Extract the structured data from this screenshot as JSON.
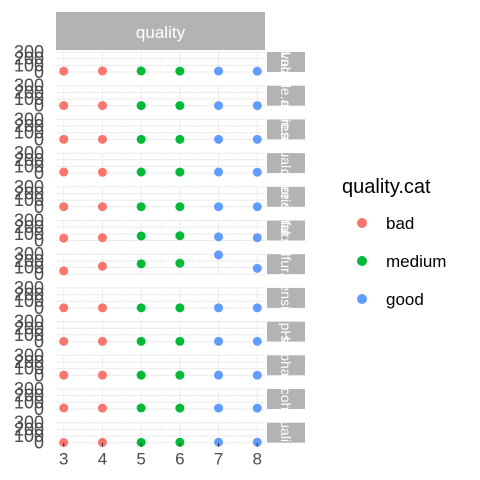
{
  "chart_data": {
    "type": "scatter",
    "facet_col_label": "quality",
    "facet_row_labels": [
      "fixed.acidity",
      "volatile.acidity",
      "citric.acid",
      "residual.sugar",
      "chlorides",
      "free.sulfur.dioxide",
      "total.sulfur.dioxide",
      "density",
      "pH",
      "sulphates",
      "alcohol",
      "quality"
    ],
    "x_ticks": [
      3,
      4,
      5,
      6,
      7,
      8
    ],
    "y_ticks": [
      0,
      100,
      200,
      300
    ],
    "ylim": [
      0,
      300
    ],
    "xlim": [
      2.8,
      8.2
    ],
    "legend": {
      "title": "quality.cat",
      "position": "right",
      "entries": [
        {
          "label": "bad",
          "color": "#F8766D"
        },
        {
          "label": "medium",
          "color": "#00BA38"
        },
        {
          "label": "good",
          "color": "#619CFF"
        }
      ]
    },
    "categories_by_x": {
      "3": "bad",
      "4": "bad",
      "5": "medium",
      "6": "medium",
      "7": "good",
      "8": "good"
    },
    "panels": [
      {
        "name": "fixed.acidity",
        "points": [
          [
            3,
            12
          ],
          [
            4,
            16
          ],
          [
            5,
            16
          ],
          [
            6,
            14
          ],
          [
            7,
            14
          ],
          [
            8,
            13
          ]
        ]
      },
      {
        "name": "volatile.acidity",
        "points": [
          [
            3,
            2
          ],
          [
            4,
            2
          ],
          [
            5,
            2
          ],
          [
            6,
            2
          ],
          [
            7,
            2
          ],
          [
            8,
            2
          ]
        ]
      },
      {
        "name": "citric.acid",
        "points": [
          [
            3,
            1
          ],
          [
            4,
            1
          ],
          [
            5,
            1
          ],
          [
            6,
            1
          ],
          [
            7,
            1
          ],
          [
            8,
            1
          ]
        ]
      },
      {
        "name": "residual.sugar",
        "points": [
          [
            3,
            16
          ],
          [
            4,
            12
          ],
          [
            5,
            16
          ],
          [
            6,
            15
          ],
          [
            7,
            16
          ],
          [
            8,
            13
          ]
        ]
      },
      {
        "name": "chlorides",
        "points": [
          [
            3,
            1
          ],
          [
            4,
            1
          ],
          [
            5,
            1
          ],
          [
            6,
            1
          ],
          [
            7,
            1
          ],
          [
            8,
            1
          ]
        ]
      },
      {
        "name": "free.sulfur.dioxide",
        "points": [
          [
            3,
            34
          ],
          [
            4,
            41
          ],
          [
            5,
            68
          ],
          [
            6,
            72
          ],
          [
            7,
            55
          ],
          [
            8,
            42
          ]
        ]
      },
      {
        "name": "total.sulfur.dioxide",
        "points": [
          [
            3,
            49
          ],
          [
            4,
            119
          ],
          [
            5,
            155
          ],
          [
            6,
            165
          ],
          [
            7,
            289
          ],
          [
            8,
            88
          ]
        ]
      },
      {
        "name": "density",
        "points": [
          [
            3,
            1
          ],
          [
            4,
            1
          ],
          [
            5,
            1
          ],
          [
            6,
            1
          ],
          [
            7,
            1
          ],
          [
            8,
            1
          ]
        ]
      },
      {
        "name": "pH",
        "points": [
          [
            3,
            4
          ],
          [
            4,
            4
          ],
          [
            5,
            4
          ],
          [
            6,
            4
          ],
          [
            7,
            4
          ],
          [
            8,
            4
          ]
        ]
      },
      {
        "name": "sulphates",
        "points": [
          [
            3,
            2
          ],
          [
            4,
            2
          ],
          [
            5,
            2
          ],
          [
            6,
            2
          ],
          [
            7,
            2
          ],
          [
            8,
            1
          ]
        ]
      },
      {
        "name": "alcohol",
        "points": [
          [
            3,
            15
          ],
          [
            4,
            14
          ],
          [
            5,
            15
          ],
          [
            6,
            14
          ],
          [
            7,
            14
          ],
          [
            8,
            14
          ]
        ]
      },
      {
        "name": "quality",
        "points": [
          [
            3,
            3
          ],
          [
            4,
            4
          ],
          [
            5,
            5
          ],
          [
            6,
            6
          ],
          [
            7,
            7
          ],
          [
            8,
            8
          ]
        ]
      }
    ]
  }
}
